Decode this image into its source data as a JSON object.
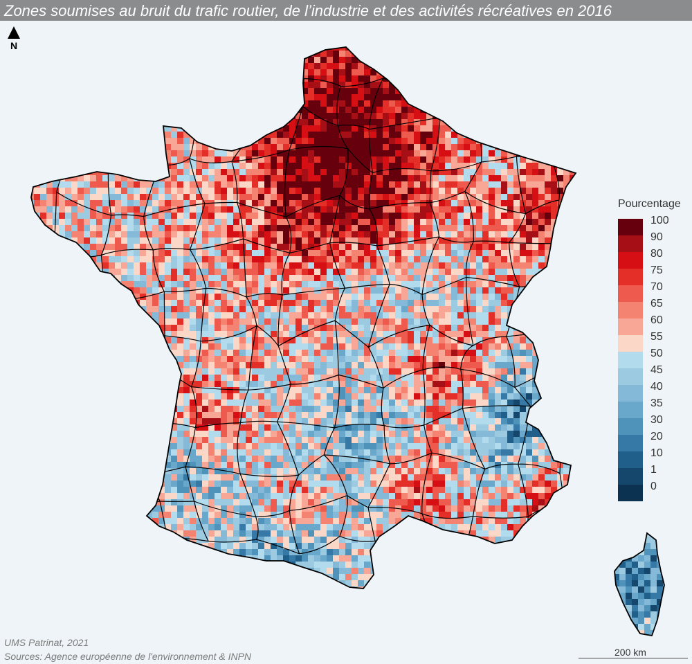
{
  "title": "Zones soumises au bruit du trafic routier, de l’industrie et des activités récréatives en 2016",
  "north_label": "N",
  "legend": {
    "title": "Pourcentage",
    "classes": [
      {
        "label": "100",
        "color": "#67000d"
      },
      {
        "label": "90",
        "color": "#a50f15"
      },
      {
        "label": "80",
        "color": "#d50f14"
      },
      {
        "label": "75",
        "color": "#e42f28"
      },
      {
        "label": "70",
        "color": "#ee5a4e"
      },
      {
        "label": "65",
        "color": "#f48372"
      },
      {
        "label": "60",
        "color": "#f8a797"
      },
      {
        "label": "55",
        "color": "#fbd7c8"
      },
      {
        "label": "50",
        "color": "#b2dcee"
      },
      {
        "label": "45",
        "color": "#9ccbe1"
      },
      {
        "label": "40",
        "color": "#84bad7"
      },
      {
        "label": "35",
        "color": "#6aa8cb"
      },
      {
        "label": "30",
        "color": "#4f92ba"
      },
      {
        "label": "20",
        "color": "#3679a6"
      },
      {
        "label": "10",
        "color": "#205f8a"
      },
      {
        "label": "1",
        "color": "#15476d"
      },
      {
        "label": "0",
        "color": "#0c3252"
      }
    ]
  },
  "credits": {
    "line1": "UMS Patrinat, 2021",
    "line2": "Sources: Agence européenne de l'environnement & INPN"
  },
  "scale_bar": {
    "label": "200 km"
  },
  "colors": {
    "background": "#eef4f7",
    "title_bar": "#8a8c8e",
    "border": "#000000"
  }
}
